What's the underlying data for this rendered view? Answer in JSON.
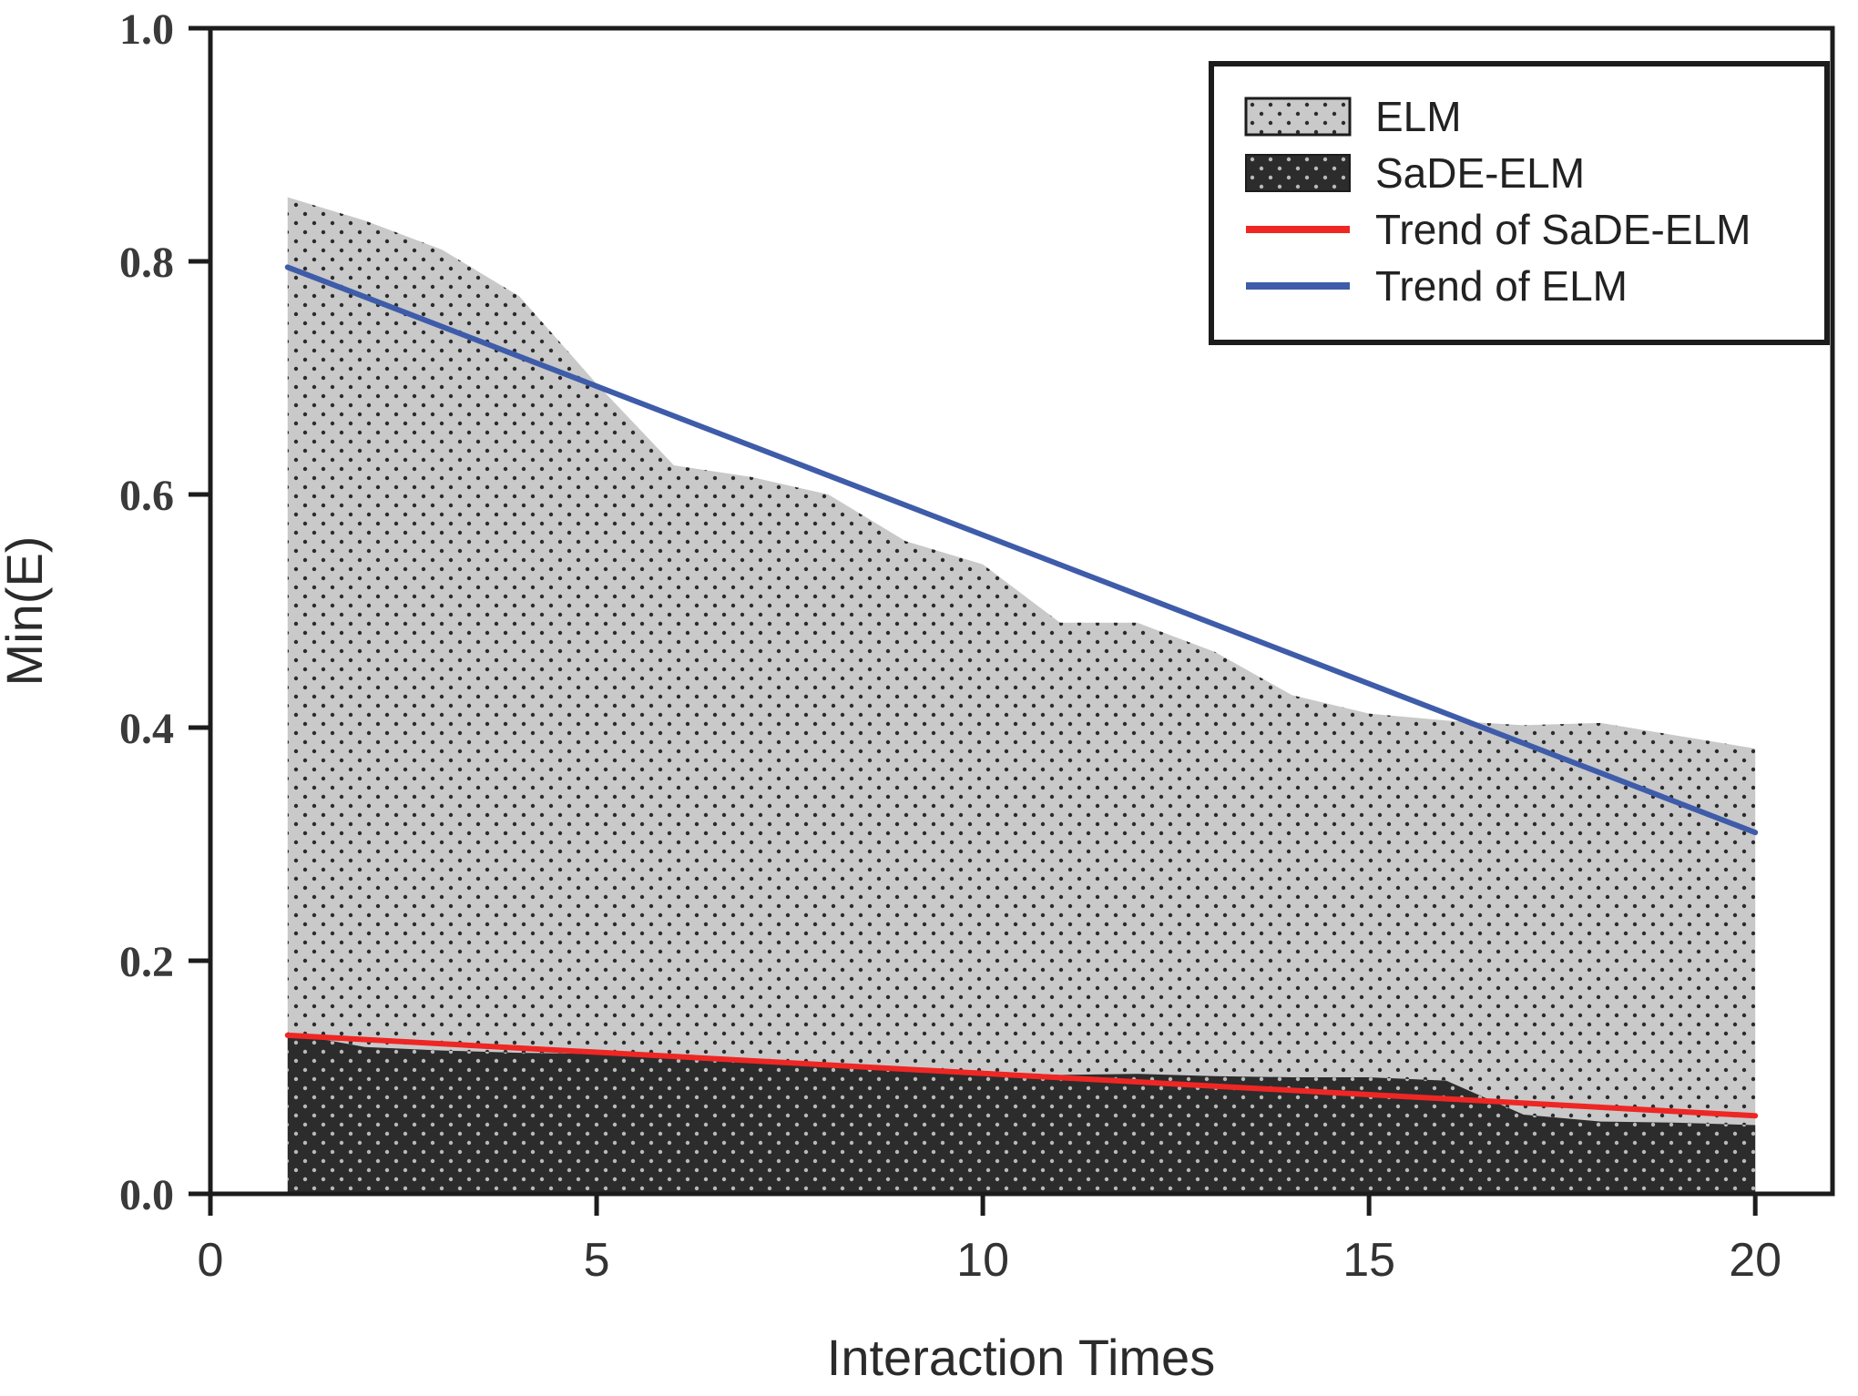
{
  "figure": {
    "background": "#ffffff",
    "axis_color": "#1c1c1c",
    "xlabel": "Interaction Times",
    "ylabel": "Min(E)"
  },
  "chart_data": {
    "type": "area",
    "title": "",
    "xlabel": "Interaction Times",
    "ylabel": "Min(E)",
    "xlim": [
      0,
      21
    ],
    "ylim": [
      0,
      1.0
    ],
    "xticks": [
      0,
      5,
      10,
      15,
      20
    ],
    "ytick_values": [
      0.0,
      0.2,
      0.4,
      0.6,
      0.8,
      1.0
    ],
    "ytick_labels": [
      "0.0",
      "0.2",
      "0.4",
      "0.6",
      "0.8",
      "1.0"
    ],
    "grid": false,
    "legend_position": "top-right",
    "x": [
      1,
      2,
      3,
      4,
      5,
      6,
      7,
      8,
      9,
      10,
      11,
      12,
      13,
      14,
      15,
      16,
      17,
      18,
      19,
      20
    ],
    "series": [
      {
        "name": "ELM",
        "kind": "area",
        "pattern": "dots-light",
        "fill_color": "#c9c9c9",
        "dot_color": "#2b2b2b",
        "values": [
          0.855,
          0.835,
          0.81,
          0.77,
          0.695,
          0.625,
          0.615,
          0.6,
          0.56,
          0.54,
          0.49,
          0.49,
          0.465,
          0.428,
          0.412,
          0.406,
          0.402,
          0.404,
          0.393,
          0.382
        ]
      },
      {
        "name": "SaDE-ELM",
        "kind": "area",
        "pattern": "dots-dark",
        "fill_color": "#2c2c2c",
        "dot_color": "#b9b9b9",
        "values": [
          0.138,
          0.126,
          0.123,
          0.121,
          0.12,
          0.118,
          0.114,
          0.111,
          0.108,
          0.105,
          0.102,
          0.103,
          0.101,
          0.1,
          0.1,
          0.097,
          0.068,
          0.062,
          0.061,
          0.059
        ]
      },
      {
        "name": "Trend of SaDE-ELM",
        "kind": "line",
        "color": "#ee2724",
        "points": [
          [
            1,
            0.136
          ],
          [
            20,
            0.067
          ]
        ]
      },
      {
        "name": "Trend of ELM",
        "kind": "line",
        "color": "#3e5ca9",
        "points": [
          [
            1,
            0.795
          ],
          [
            20,
            0.31
          ]
        ]
      }
    ]
  },
  "legend": {
    "items": [
      {
        "label": "ELM"
      },
      {
        "label": "SaDE-ELM"
      },
      {
        "label": "Trend of SaDE-ELM"
      },
      {
        "label": "Trend of ELM"
      }
    ]
  }
}
